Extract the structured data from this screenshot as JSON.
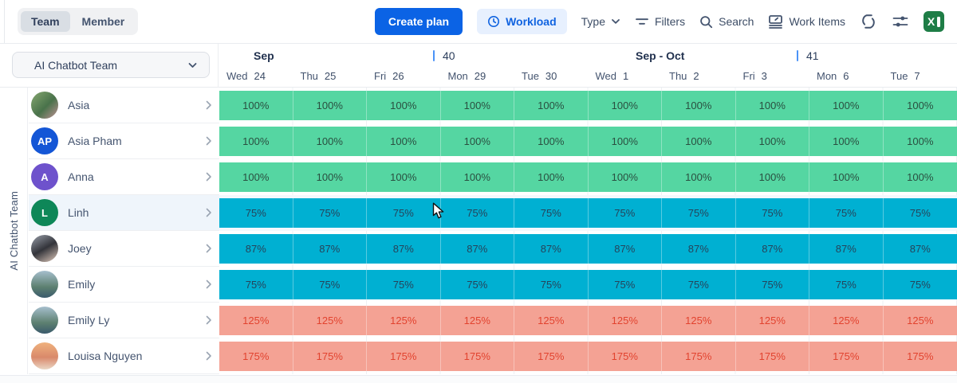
{
  "toolbar": {
    "view_toggle": {
      "options": [
        "Team",
        "Member"
      ],
      "selected": "Team"
    },
    "create_plan_label": "Create plan",
    "workload_label": "Workload",
    "type_label": "Type",
    "filters_label": "Filters",
    "search_label": "Search",
    "work_items_label": "Work Items",
    "icons": [
      "clock-icon",
      "chevron-down-icon",
      "filter-icon",
      "search-icon",
      "work-items-icon",
      "refresh-icon",
      "display-settings-icon",
      "excel-export-icon"
    ]
  },
  "sidebar": {
    "team_selector": "AI Chatbot Team",
    "group_label": "AI Chatbot Team",
    "members": [
      {
        "name": "Asia",
        "avatar": {
          "type": "photo",
          "bg": "linear-gradient(135deg,#86a871 0%,#49724a 55%,#c09196 100%)"
        }
      },
      {
        "name": "Asia Pham",
        "avatar": {
          "type": "initials",
          "initials": "AP",
          "bg": "#1456d6"
        }
      },
      {
        "name": "Anna",
        "avatar": {
          "type": "initials",
          "initials": "A",
          "bg": "#6e52cc"
        }
      },
      {
        "name": "Linh",
        "avatar": {
          "type": "initials",
          "initials": "L",
          "bg": "#0e8758"
        },
        "highlighted": true
      },
      {
        "name": "Joey",
        "avatar": {
          "type": "photo",
          "bg": "linear-gradient(150deg,#9aa0ab 0%,#33343a 50%,#e3cdbf 100%)"
        }
      },
      {
        "name": "Emily",
        "avatar": {
          "type": "photo",
          "bg": "linear-gradient(180deg,#a6bfce 0%,#5d8070 60%,#3a5a6c 100%)"
        }
      },
      {
        "name": "Emily Ly",
        "avatar": {
          "type": "photo",
          "bg": "linear-gradient(180deg,#a6bfce 0%,#5d8070 60%,#3a5a6c 100%)"
        }
      },
      {
        "name": "Louisa Nguyen",
        "avatar": {
          "type": "photo",
          "bg": "linear-gradient(180deg,#efb27e 0%,#d9896b 55%,#ead6c4 100%)"
        }
      }
    ]
  },
  "timeline": {
    "months": [
      {
        "label": "Sep"
      },
      {
        "label": "Sep - Oct"
      }
    ],
    "weeks": [
      {
        "number": "40"
      },
      {
        "number": "41"
      }
    ],
    "days": [
      {
        "dow": "Wed",
        "date": "24"
      },
      {
        "dow": "Thu",
        "date": "25"
      },
      {
        "dow": "Fri",
        "date": "26"
      },
      {
        "dow": "Mon",
        "date": "29"
      },
      {
        "dow": "Tue",
        "date": "30"
      },
      {
        "dow": "Wed",
        "date": "1"
      },
      {
        "dow": "Thu",
        "date": "2"
      },
      {
        "dow": "Fri",
        "date": "3"
      },
      {
        "dow": "Mon",
        "date": "6"
      },
      {
        "dow": "Tue",
        "date": "7"
      }
    ]
  },
  "workload": {
    "levels": {
      "full": {
        "bar": "#55d6a2",
        "text": "#2a4f40"
      },
      "partial": {
        "bar": "#00b0d2",
        "text": "#26435a"
      },
      "over": {
        "bar": "#f4a294",
        "text": "#e2432f"
      }
    },
    "rows": [
      {
        "member": "Asia",
        "level": "full",
        "values": [
          "100%",
          "100%",
          "100%",
          "100%",
          "100%",
          "100%",
          "100%",
          "100%",
          "100%",
          "100%"
        ]
      },
      {
        "member": "Asia Pham",
        "level": "full",
        "values": [
          "100%",
          "100%",
          "100%",
          "100%",
          "100%",
          "100%",
          "100%",
          "100%",
          "100%",
          "100%"
        ]
      },
      {
        "member": "Anna",
        "level": "full",
        "values": [
          "100%",
          "100%",
          "100%",
          "100%",
          "100%",
          "100%",
          "100%",
          "100%",
          "100%",
          "100%"
        ]
      },
      {
        "member": "Linh",
        "level": "partial",
        "values": [
          "75%",
          "75%",
          "75%",
          "75%",
          "75%",
          "75%",
          "75%",
          "75%",
          "75%",
          "75%"
        ]
      },
      {
        "member": "Joey",
        "level": "partial",
        "values": [
          "87%",
          "87%",
          "87%",
          "87%",
          "87%",
          "87%",
          "87%",
          "87%",
          "87%",
          "87%"
        ]
      },
      {
        "member": "Emily",
        "level": "partial",
        "values": [
          "75%",
          "75%",
          "75%",
          "75%",
          "75%",
          "75%",
          "75%",
          "75%",
          "75%",
          "75%"
        ]
      },
      {
        "member": "Emily Ly",
        "level": "over",
        "values": [
          "125%",
          "125%",
          "125%",
          "125%",
          "125%",
          "125%",
          "125%",
          "125%",
          "125%",
          "125%"
        ]
      },
      {
        "member": "Louisa Nguyen",
        "level": "over",
        "values": [
          "175%",
          "175%",
          "175%",
          "175%",
          "175%",
          "175%",
          "175%",
          "175%",
          "175%",
          "175%"
        ]
      }
    ]
  },
  "colors": {
    "primary_blue": "#0b63e5",
    "workload_pill_bg": "#e7f0fe",
    "week_tick_blue": "#4b93f7",
    "toolbar_icon": "#44546f",
    "excel_green": "#1e7d46"
  }
}
